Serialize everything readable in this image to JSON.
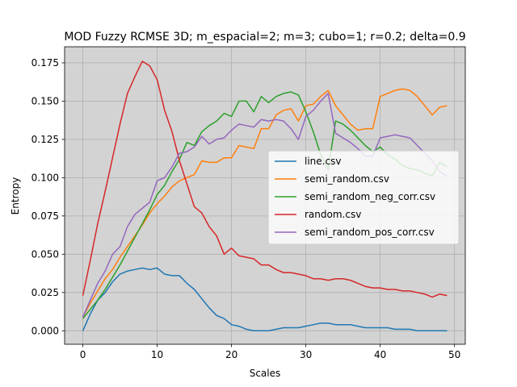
{
  "chart_data": {
    "type": "line",
    "title": "MOD Fuzzy RCMSE 3D; m_espacial=2; m=3; cubo=1; r=0.2; delta=0.9",
    "xlabel": "Scales",
    "ylabel": "Entropy",
    "xlim": [
      -2.45,
      51.45
    ],
    "ylim": [
      -0.0088,
      0.1855
    ],
    "xticks": [
      0,
      10,
      20,
      30,
      40,
      50
    ],
    "xtick_labels": [
      "0",
      "10",
      "20",
      "30",
      "40",
      "50"
    ],
    "yticks": [
      0.0,
      0.025,
      0.05,
      0.075,
      0.1,
      0.125,
      0.15,
      0.175
    ],
    "ytick_labels": [
      "0.000",
      "0.025",
      "0.050",
      "0.075",
      "0.100",
      "0.125",
      "0.150",
      "0.175"
    ],
    "grid": true,
    "background": "#d3d3d3",
    "legend_placement": "center-right",
    "x": [
      0,
      1,
      2,
      3,
      4,
      5,
      6,
      7,
      8,
      9,
      10,
      11,
      12,
      13,
      14,
      15,
      16,
      17,
      18,
      19,
      20,
      21,
      22,
      23,
      24,
      25,
      26,
      27,
      28,
      29,
      30,
      31,
      32,
      33,
      34,
      35,
      36,
      37,
      38,
      39,
      40,
      41,
      42,
      43,
      44,
      45,
      46,
      47,
      48,
      49
    ],
    "series": [
      {
        "name": "line.csv",
        "color": "#1f77b4",
        "values": [
          0.0,
          0.011,
          0.02,
          0.025,
          0.032,
          0.037,
          0.039,
          0.04,
          0.041,
          0.04,
          0.041,
          0.037,
          0.036,
          0.036,
          0.031,
          0.027,
          0.021,
          0.015,
          0.01,
          0.008,
          0.004,
          0.003,
          0.001,
          0.0,
          0.0,
          0.0,
          0.001,
          0.002,
          0.002,
          0.002,
          0.003,
          0.004,
          0.005,
          0.005,
          0.004,
          0.004,
          0.004,
          0.003,
          0.002,
          0.002,
          0.002,
          0.002,
          0.001,
          0.001,
          0.001,
          0.0,
          0.0,
          0.0,
          0.0,
          0.0
        ]
      },
      {
        "name": "semi_random.csv",
        "color": "#ff7f0e",
        "values": [
          0.009,
          0.018,
          0.026,
          0.034,
          0.04,
          0.048,
          0.055,
          0.062,
          0.069,
          0.077,
          0.083,
          0.088,
          0.094,
          0.098,
          0.1,
          0.102,
          0.111,
          0.11,
          0.11,
          0.113,
          0.113,
          0.121,
          0.12,
          0.119,
          0.132,
          0.132,
          0.141,
          0.144,
          0.145,
          0.137,
          0.147,
          0.148,
          0.153,
          0.157,
          0.147,
          0.141,
          0.135,
          0.131,
          0.132,
          0.132,
          0.153,
          0.155,
          0.157,
          0.158,
          0.157,
          0.153,
          0.147,
          0.141,
          0.146,
          0.147
        ]
      },
      {
        "name": "semi_random_neg_corr.csv",
        "color": "#2ca02c",
        "values": [
          0.008,
          0.014,
          0.02,
          0.027,
          0.035,
          0.043,
          0.052,
          0.061,
          0.07,
          0.079,
          0.089,
          0.095,
          0.104,
          0.112,
          0.123,
          0.121,
          0.13,
          0.134,
          0.137,
          0.142,
          0.14,
          0.15,
          0.15,
          0.143,
          0.153,
          0.149,
          0.153,
          0.155,
          0.156,
          0.154,
          0.143,
          0.13,
          0.115,
          0.105,
          0.137,
          0.135,
          0.131,
          0.126,
          0.121,
          0.117,
          0.12,
          0.115,
          0.112,
          0.108,
          0.106,
          0.105,
          0.103,
          0.101,
          0.11,
          0.107
        ]
      },
      {
        "name": "random.csv",
        "color": "#d62728",
        "values": [
          0.023,
          0.046,
          0.07,
          0.091,
          0.113,
          0.135,
          0.155,
          0.166,
          0.176,
          0.173,
          0.164,
          0.144,
          0.13,
          0.111,
          0.096,
          0.081,
          0.077,
          0.068,
          0.062,
          0.05,
          0.054,
          0.049,
          0.048,
          0.047,
          0.043,
          0.043,
          0.04,
          0.038,
          0.038,
          0.037,
          0.036,
          0.034,
          0.034,
          0.033,
          0.034,
          0.034,
          0.033,
          0.031,
          0.029,
          0.028,
          0.028,
          0.027,
          0.027,
          0.026,
          0.026,
          0.025,
          0.024,
          0.022,
          0.024,
          0.023
        ]
      },
      {
        "name": "semi_random_pos_corr.csv",
        "color": "#9467bd",
        "values": [
          0.009,
          0.02,
          0.031,
          0.039,
          0.05,
          0.055,
          0.068,
          0.076,
          0.08,
          0.084,
          0.098,
          0.1,
          0.107,
          0.116,
          0.117,
          0.12,
          0.127,
          0.122,
          0.125,
          0.126,
          0.131,
          0.135,
          0.134,
          0.133,
          0.138,
          0.137,
          0.138,
          0.137,
          0.132,
          0.125,
          0.14,
          0.144,
          0.15,
          0.155,
          0.129,
          0.126,
          0.123,
          0.119,
          0.114,
          0.114,
          0.126,
          0.127,
          0.128,
          0.127,
          0.126,
          0.121,
          0.116,
          0.111,
          0.104,
          0.101
        ]
      }
    ]
  }
}
